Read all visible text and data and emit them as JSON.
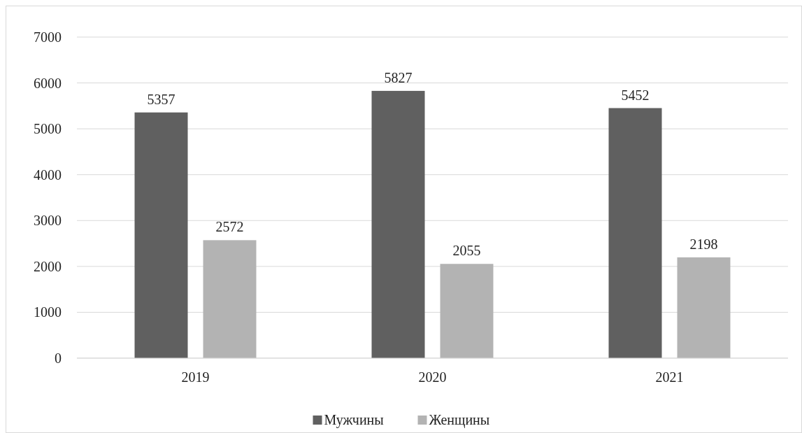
{
  "chart_data": {
    "type": "bar",
    "categories": [
      "2019",
      "2020",
      "2021"
    ],
    "series": [
      {
        "name": "Мужчины",
        "color": "#606060",
        "values": [
          5357,
          5827,
          5452
        ]
      },
      {
        "name": "Женщины",
        "color": "#b3b3b3",
        "values": [
          2572,
          2055,
          2198
        ]
      }
    ],
    "ylim": [
      0,
      7000
    ],
    "yticks": [
      0,
      1000,
      2000,
      3000,
      4000,
      5000,
      6000,
      7000
    ],
    "grid": "y",
    "legend": "bottom",
    "data_labels": true
  }
}
